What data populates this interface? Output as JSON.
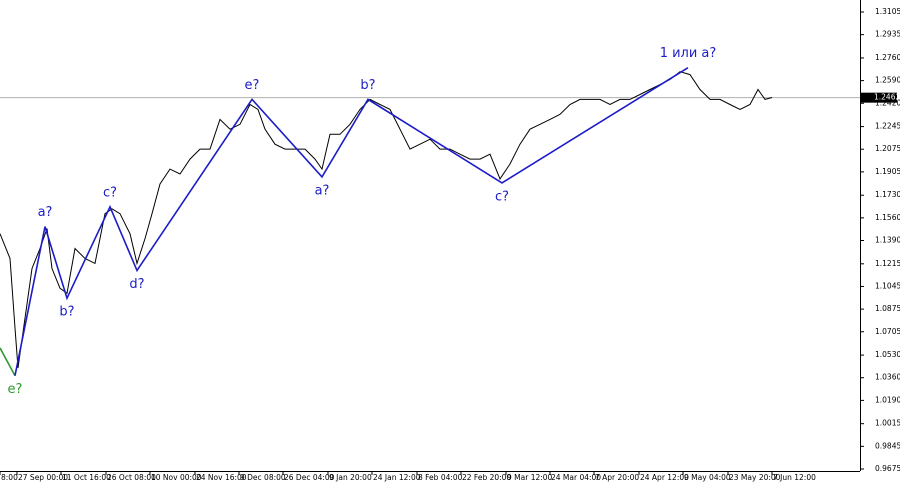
{
  "chart_data": {
    "type": "line",
    "xlim": [
      0,
      860
    ],
    "ylim": [
      0.966,
      1.3195
    ],
    "last_price": 1.2462,
    "xticks": [
      {
        "value": 0,
        "label": "8:00"
      },
      {
        "value": 17,
        "label": "27 Sep 00:00"
      },
      {
        "value": 61,
        "label": "11 Oct 16:00"
      },
      {
        "value": 106,
        "label": "26 Oct 08:00"
      },
      {
        "value": 150,
        "label": "10 Nov 00:00"
      },
      {
        "value": 195,
        "label": "24 Nov 16:00"
      },
      {
        "value": 239,
        "label": "9 Dec 08:00"
      },
      {
        "value": 283,
        "label": "26 Dec 04:00"
      },
      {
        "value": 328,
        "label": "9 Jan 20:00"
      },
      {
        "value": 372,
        "label": "24 Jan 12:00"
      },
      {
        "value": 417,
        "label": "8 Feb 04:00"
      },
      {
        "value": 461,
        "label": "22 Feb 20:00"
      },
      {
        "value": 506,
        "label": "9 Mar 12:00"
      },
      {
        "value": 550,
        "label": "24 Mar 04:00"
      },
      {
        "value": 594,
        "label": "7 Apr 20:00"
      },
      {
        "value": 639,
        "label": "24 Apr 12:00"
      },
      {
        "value": 683,
        "label": "9 May 04:00"
      },
      {
        "value": 728,
        "label": "23 May 20:00"
      },
      {
        "value": 772,
        "label": "7 Jun 12:00"
      }
    ],
    "yticks": [
      1.3105,
      1.2935,
      {
        "value": 1.276,
        "label": "1.2760"
      },
      {
        "value": 1.259,
        "label": "1.2590"
      },
      {
        "value": 1.242,
        "label": "1.2420"
      },
      1.2245,
      1.2075,
      1.1905,
      {
        "value": 1.173,
        "label": "1.1730"
      },
      {
        "value": 1.156,
        "label": "1.1560"
      },
      {
        "value": 1.139,
        "label": "1.1390"
      },
      1.1215,
      1.1045,
      1.0875,
      1.0705,
      {
        "value": 1.053,
        "label": "1.0530"
      },
      {
        "value": 1.036,
        "label": "1.0360"
      },
      {
        "value": 1.019,
        "label": "1.0190"
      },
      1.0015,
      0.9845,
      0.9675
    ],
    "series": [
      {
        "color": "#000000",
        "x": [
          0,
          10,
          15,
          18,
          25,
          32,
          40,
          47,
          52,
          60,
          67,
          75,
          85,
          95,
          105,
          112,
          120,
          130,
          137,
          145,
          152,
          160,
          170,
          180,
          190,
          200,
          210,
          220,
          230,
          240,
          250,
          258,
          265,
          275,
          285,
          295,
          305,
          315,
          322,
          330,
          340,
          350,
          360,
          370,
          380,
          390,
          400,
          410,
          420,
          430,
          440,
          450,
          460,
          470,
          480,
          490,
          500,
          510,
          520,
          530,
          540,
          550,
          560,
          570,
          580,
          590,
          600,
          610,
          620,
          630,
          640,
          650,
          660,
          670,
          680,
          690,
          700,
          710,
          720,
          730,
          740,
          750,
          758,
          765,
          772
        ],
        "values": [
          1.1441,
          1.1255,
          1.0733,
          1.0434,
          1.0807,
          1.118,
          1.133,
          1.1479,
          1.118,
          1.1031,
          1.0994,
          1.133,
          1.1255,
          1.1218,
          1.1591,
          1.1628,
          1.1591,
          1.1441,
          1.1218,
          1.1404,
          1.1591,
          1.1814,
          1.1926,
          1.1889,
          1.2001,
          1.2076,
          1.2076,
          1.2299,
          1.2225,
          1.2262,
          1.2411,
          1.2374,
          1.2225,
          1.2113,
          1.2076,
          1.2076,
          1.2076,
          1.2001,
          1.1926,
          1.2187,
          1.2187,
          1.2262,
          1.2374,
          1.2449,
          1.2411,
          1.2374,
          1.2225,
          1.2076,
          1.2113,
          1.215,
          1.2076,
          1.2076,
          1.2038,
          1.2001,
          1.2001,
          1.2038,
          1.1852,
          1.1964,
          1.2113,
          1.2225,
          1.2262,
          1.2299,
          1.2337,
          1.2411,
          1.2449,
          1.2449,
          1.2449,
          1.2411,
          1.2449,
          1.2449,
          1.2486,
          1.2523,
          1.256,
          1.2598,
          1.2657,
          1.2635,
          1.2523,
          1.2449,
          1.2449,
          1.2411,
          1.2374,
          1.2411,
          1.2523,
          1.2449,
          1.2463
        ]
      },
      {
        "color": "#2e9b2e",
        "x": [
          0,
          15
        ],
        "values": [
          1.0584,
          1.0375
        ],
        "point_labels": [
          null,
          "e?"
        ]
      },
      {
        "color": "#1c1cc8",
        "x": [
          15,
          45,
          67,
          110,
          137,
          252,
          322,
          368,
          502,
          688
        ],
        "values": [
          1.0375,
          1.1494,
          1.0957,
          1.1643,
          1.1165,
          1.2449,
          1.1867,
          1.2449,
          1.1822,
          1.2687
        ],
        "point_labels": [
          null,
          "a?",
          "b?",
          "c?",
          "d?",
          "e?",
          "a?",
          "b?",
          "c?",
          "1 или a?"
        ]
      }
    ]
  }
}
